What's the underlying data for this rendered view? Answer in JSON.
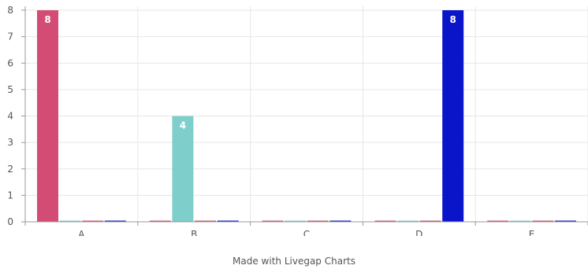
{
  "chart_data": {
    "type": "bar",
    "categories": [
      "A",
      "B",
      "C",
      "D",
      "E"
    ],
    "series": [
      {
        "color": "#d34c75",
        "values": [
          8,
          0,
          0,
          0,
          0
        ]
      },
      {
        "color": "#7ecfcb",
        "values": [
          0,
          4,
          0,
          0,
          0
        ]
      },
      {
        "color": "#ca4c5f",
        "values": [
          0,
          0,
          0,
          0,
          0
        ]
      },
      {
        "color": "#0a14c8",
        "values": [
          0,
          0,
          0,
          8,
          0
        ]
      }
    ],
    "data_labels": true,
    "ylim": [
      0,
      8
    ],
    "yticks": [
      0,
      1,
      2,
      3,
      4,
      5,
      6,
      7,
      8
    ],
    "grid": true,
    "legend": "none"
  },
  "footer": {
    "text": "Made with Livegap Charts"
  }
}
